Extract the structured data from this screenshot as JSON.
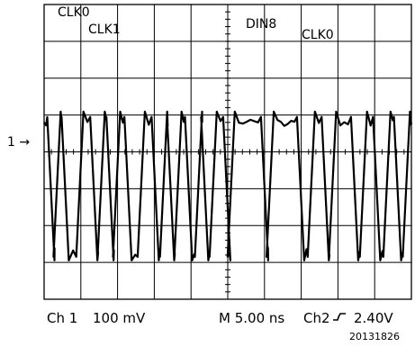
{
  "chart_data": {
    "type": "line",
    "title": "",
    "xlabel": "",
    "ylabel": "",
    "grid": true,
    "grid_divisions": {
      "x": 10,
      "y": 8
    },
    "trace_levels": {
      "high": 0.8,
      "low": -2.7,
      "unit": "divisions_from_center"
    },
    "annotations": [
      "CLK0",
      "CLK1",
      "DIN8",
      "CLK0"
    ],
    "ground_marker": "1 →",
    "series": [
      {
        "transitions": [
          0.11,
          0.28,
          0.5,
          0.9,
          1.28,
          1.48,
          1.72,
          1.9,
          2.21,
          2.57,
          2.95,
          3.18,
          3.37,
          3.57,
          3.86,
          4.13,
          4.3,
          4.53,
          4.9,
          5.02,
          5.93,
          6.08,
          6.91,
          7.2,
          7.58,
          7.78,
          8.38,
          8.62,
          8.98,
          9.26,
          9.55,
          9.79
        ]
      }
    ],
    "status_bar": {
      "channel": "Ch 1",
      "volts_per_div": "100 mV",
      "timebase": "M 5.00 ns",
      "trigger_channel": "Ch2",
      "trigger_level": "2.40V"
    },
    "figure_id": "20131826"
  },
  "colors": {
    "trace": "#000000",
    "grid": "#000000",
    "background": "#ffffff"
  }
}
